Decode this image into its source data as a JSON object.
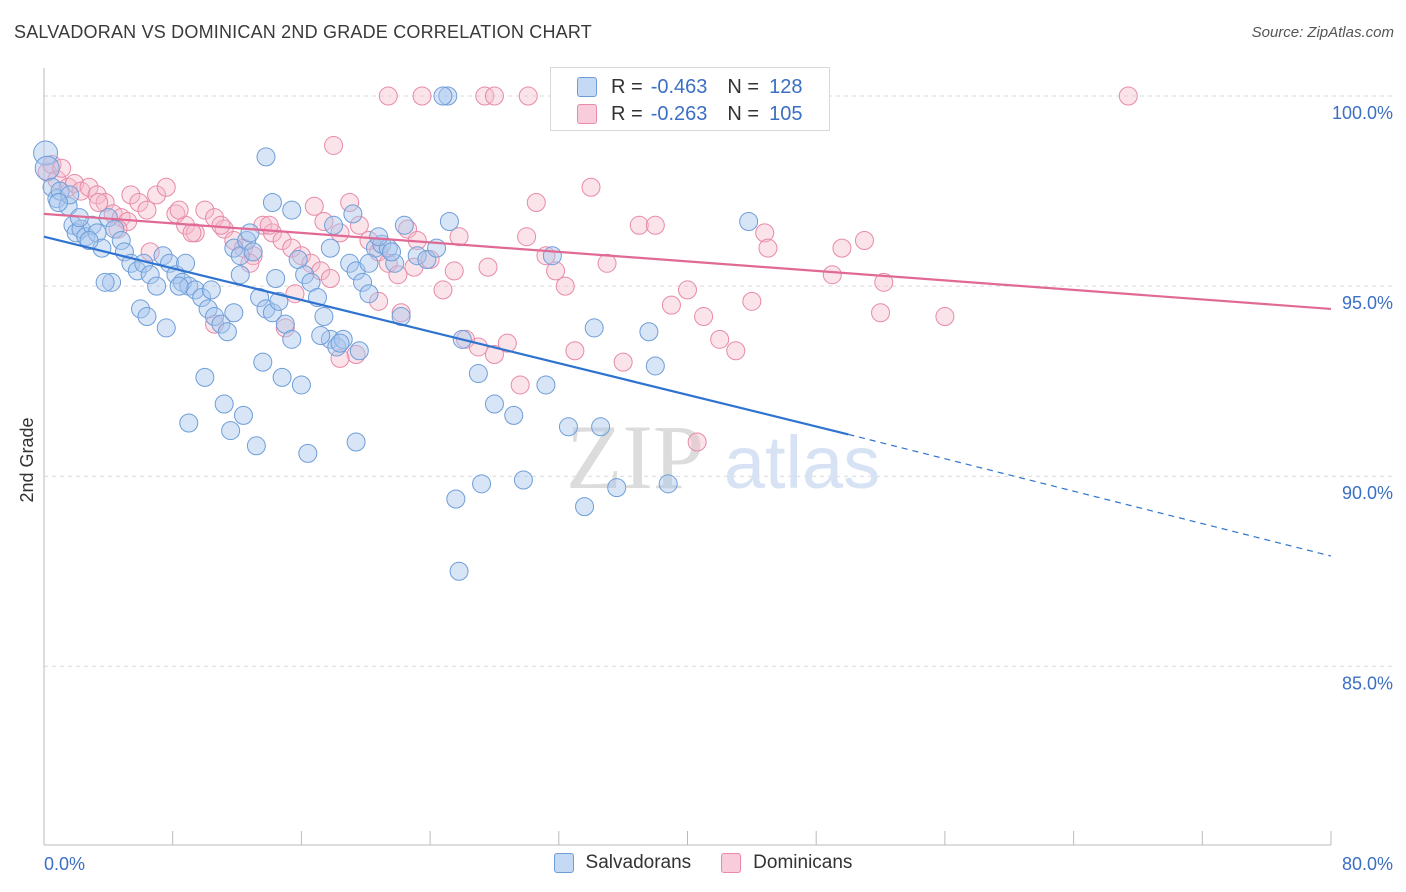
{
  "header": {
    "title": "SALVADORAN VS DOMINICAN 2ND GRADE CORRELATION CHART",
    "source_label": "Source:",
    "source_value": "ZipAtlas.com"
  },
  "legend": {
    "r_label": "R =",
    "n_label": "N =",
    "entries": [
      {
        "name": "Salvadorans",
        "r": "-0.463",
        "n": "128",
        "fill": "#a9c6ee",
        "stroke": "#6e9ed8"
      },
      {
        "name": "Dominicans",
        "r": "-0.263",
        "n": "105",
        "fill": "#f5b8cb",
        "stroke": "#e88aa8"
      }
    ]
  },
  "watermark": {
    "zip": "ZIP",
    "atlas": "atlas"
  },
  "colors": {
    "blue_line": "#2f73d0",
    "pink_line": "#e06a95",
    "tick_text": "#3b6fc4",
    "grid": "#d9d9d9"
  },
  "chart_data": {
    "type": "scatter",
    "title": "SALVADORAN VS DOMINICAN 2ND GRADE CORRELATION CHART",
    "xlabel": "",
    "ylabel": "2nd Grade",
    "xlim": [
      0,
      80
    ],
    "ylim": [
      80.3,
      101.0
    ],
    "x_tick_labels": [
      "0.0%",
      "80.0%"
    ],
    "y_ticks": [
      85,
      90,
      95,
      100
    ],
    "y_tick_labels": [
      "85.0%",
      "90.0%",
      "95.0%",
      "100.0%"
    ],
    "grid": true,
    "legend_position": "top-center",
    "series": [
      {
        "name": "Salvadorans",
        "color": "#6e9ed8",
        "trend": {
          "x0": 0,
          "y0": 96.3,
          "x1": 50,
          "y1": 91.1,
          "dashed_to_x": 80,
          "dashed_to_y": 87.9
        },
        "points": [
          [
            0.1,
            98.5
          ],
          [
            0.2,
            98.1
          ],
          [
            0.5,
            97.6
          ],
          [
            0.8,
            97.3
          ],
          [
            1.0,
            97.5
          ],
          [
            1.5,
            97.1
          ],
          [
            1.8,
            96.6
          ],
          [
            2.0,
            96.4
          ],
          [
            2.3,
            96.5
          ],
          [
            2.6,
            96.3
          ],
          [
            3.0,
            96.6
          ],
          [
            3.3,
            96.4
          ],
          [
            3.6,
            96.0
          ],
          [
            4.0,
            96.8
          ],
          [
            4.4,
            96.5
          ],
          [
            4.8,
            96.2
          ],
          [
            5.0,
            95.9
          ],
          [
            5.4,
            95.6
          ],
          [
            5.8,
            95.4
          ],
          [
            6.2,
            95.6
          ],
          [
            6.6,
            95.3
          ],
          [
            7.0,
            95.0
          ],
          [
            7.4,
            95.8
          ],
          [
            7.8,
            95.6
          ],
          [
            8.2,
            95.3
          ],
          [
            8.6,
            95.1
          ],
          [
            9.0,
            95.0
          ],
          [
            9.4,
            94.9
          ],
          [
            9.8,
            94.7
          ],
          [
            10.2,
            94.4
          ],
          [
            10.6,
            94.2
          ],
          [
            11.0,
            94.0
          ],
          [
            11.4,
            93.8
          ],
          [
            11.8,
            96.0
          ],
          [
            12.2,
            95.8
          ],
          [
            12.6,
            96.2
          ],
          [
            13.0,
            95.9
          ],
          [
            13.4,
            94.7
          ],
          [
            13.8,
            94.4
          ],
          [
            14.2,
            94.3
          ],
          [
            14.6,
            94.6
          ],
          [
            15.0,
            94.0
          ],
          [
            15.4,
            93.6
          ],
          [
            15.8,
            95.7
          ],
          [
            16.2,
            95.3
          ],
          [
            16.6,
            95.1
          ],
          [
            17.0,
            94.7
          ],
          [
            17.4,
            94.2
          ],
          [
            17.8,
            93.6
          ],
          [
            18.2,
            93.4
          ],
          [
            18.6,
            93.6
          ],
          [
            19.0,
            95.6
          ],
          [
            19.4,
            95.4
          ],
          [
            19.8,
            95.1
          ],
          [
            20.2,
            94.8
          ],
          [
            20.6,
            96.0
          ],
          [
            21.0,
            96.1
          ],
          [
            21.4,
            96.0
          ],
          [
            21.8,
            95.6
          ],
          [
            22.2,
            94.2
          ],
          [
            2.8,
            96.2
          ],
          [
            4.2,
            95.1
          ],
          [
            6.0,
            94.4
          ],
          [
            7.6,
            93.9
          ],
          [
            8.8,
            95.6
          ],
          [
            10.0,
            92.6
          ],
          [
            11.2,
            91.9
          ],
          [
            12.4,
            91.6
          ],
          [
            13.6,
            93.0
          ],
          [
            14.8,
            92.6
          ],
          [
            16.0,
            92.4
          ],
          [
            17.2,
            93.7
          ],
          [
            18.4,
            93.5
          ],
          [
            19.6,
            93.3
          ],
          [
            20.8,
            96.3
          ],
          [
            22.4,
            96.6
          ],
          [
            23.2,
            95.8
          ],
          [
            25.2,
            96.7
          ],
          [
            26.0,
            93.6
          ],
          [
            27.0,
            92.7
          ],
          [
            28.0,
            91.9
          ],
          [
            29.2,
            91.6
          ],
          [
            31.2,
            92.4
          ],
          [
            32.6,
            91.3
          ],
          [
            34.6,
            91.3
          ],
          [
            35.6,
            89.7
          ],
          [
            9.0,
            91.4
          ],
          [
            11.6,
            91.2
          ],
          [
            13.2,
            90.8
          ],
          [
            16.4,
            90.6
          ],
          [
            19.4,
            90.9
          ],
          [
            25.6,
            89.4
          ],
          [
            27.2,
            89.8
          ],
          [
            29.8,
            89.9
          ],
          [
            33.6,
            89.2
          ],
          [
            25.8,
            87.5
          ],
          [
            43.8,
            96.7
          ],
          [
            34.2,
            93.9
          ],
          [
            31.6,
            95.8
          ],
          [
            38.0,
            92.9
          ],
          [
            37.6,
            93.8
          ],
          [
            38.8,
            89.8
          ],
          [
            15.4,
            97.0
          ],
          [
            8.4,
            95.0
          ],
          [
            6.4,
            94.2
          ],
          [
            3.8,
            95.1
          ],
          [
            2.2,
            96.8
          ],
          [
            1.6,
            97.4
          ],
          [
            0.9,
            97.2
          ],
          [
            12.8,
            96.4
          ],
          [
            17.8,
            96.0
          ],
          [
            19.2,
            96.9
          ],
          [
            23.8,
            95.7
          ],
          [
            24.4,
            96.0
          ],
          [
            21.6,
            95.9
          ],
          [
            18.0,
            96.6
          ],
          [
            14.2,
            97.2
          ],
          [
            13.8,
            98.4
          ],
          [
            14.4,
            95.2
          ],
          [
            10.4,
            94.9
          ],
          [
            11.8,
            94.3
          ],
          [
            12.2,
            95.3
          ],
          [
            20.2,
            95.6
          ],
          [
            25.1,
            100.0
          ],
          [
            24.8,
            100.0
          ]
        ]
      },
      {
        "name": "Dominicans",
        "color": "#e88aa8",
        "trend": {
          "x0": 0,
          "y0": 96.9,
          "x1": 80,
          "y1": 94.4
        },
        "points": [
          [
            0.2,
            98.0
          ],
          [
            0.5,
            98.2
          ],
          [
            0.8,
            97.8
          ],
          [
            1.1,
            98.1
          ],
          [
            1.5,
            97.6
          ],
          [
            1.9,
            97.7
          ],
          [
            2.3,
            97.5
          ],
          [
            2.8,
            97.6
          ],
          [
            3.3,
            97.4
          ],
          [
            3.8,
            97.2
          ],
          [
            4.3,
            96.9
          ],
          [
            4.8,
            96.8
          ],
          [
            5.4,
            97.4
          ],
          [
            5.9,
            97.2
          ],
          [
            6.4,
            97.0
          ],
          [
            7.0,
            97.4
          ],
          [
            7.6,
            97.6
          ],
          [
            8.2,
            96.9
          ],
          [
            8.8,
            96.6
          ],
          [
            9.4,
            96.4
          ],
          [
            10.0,
            97.0
          ],
          [
            10.6,
            96.8
          ],
          [
            11.2,
            96.5
          ],
          [
            11.8,
            96.2
          ],
          [
            12.4,
            96.0
          ],
          [
            13.0,
            95.8
          ],
          [
            13.6,
            96.6
          ],
          [
            14.2,
            96.4
          ],
          [
            14.8,
            96.2
          ],
          [
            15.4,
            96.0
          ],
          [
            16.0,
            95.8
          ],
          [
            16.6,
            95.6
          ],
          [
            17.2,
            95.4
          ],
          [
            17.8,
            95.2
          ],
          [
            18.4,
            96.4
          ],
          [
            19.0,
            97.2
          ],
          [
            19.6,
            96.6
          ],
          [
            20.2,
            96.2
          ],
          [
            20.8,
            95.9
          ],
          [
            21.4,
            95.6
          ],
          [
            22.0,
            95.3
          ],
          [
            22.6,
            96.5
          ],
          [
            23.2,
            96.2
          ],
          [
            24.0,
            95.7
          ],
          [
            24.8,
            94.9
          ],
          [
            25.5,
            95.4
          ],
          [
            26.2,
            93.6
          ],
          [
            27.0,
            93.4
          ],
          [
            28.0,
            93.2
          ],
          [
            28.8,
            93.5
          ],
          [
            30.0,
            96.3
          ],
          [
            30.6,
            97.2
          ],
          [
            31.2,
            95.8
          ],
          [
            31.8,
            95.4
          ],
          [
            32.4,
            95.0
          ],
          [
            33.0,
            93.3
          ],
          [
            34.0,
            97.6
          ],
          [
            35.0,
            95.6
          ],
          [
            36.0,
            93.0
          ],
          [
            37.0,
            96.6
          ],
          [
            38.0,
            96.6
          ],
          [
            39.0,
            94.5
          ],
          [
            40.0,
            94.9
          ],
          [
            41.0,
            94.2
          ],
          [
            42.0,
            93.6
          ],
          [
            43.0,
            93.3
          ],
          [
            44.0,
            94.6
          ],
          [
            44.8,
            96.4
          ],
          [
            45.0,
            96.0
          ],
          [
            49.0,
            95.3
          ],
          [
            49.6,
            96.0
          ],
          [
            51.0,
            96.2
          ],
          [
            52.2,
            95.1
          ],
          [
            52.0,
            94.3
          ],
          [
            56.0,
            94.2
          ],
          [
            18.0,
            98.7
          ],
          [
            21.4,
            100.0
          ],
          [
            23.5,
            100.0
          ],
          [
            27.4,
            100.0
          ],
          [
            28.0,
            100.0
          ],
          [
            30.1,
            100.0
          ],
          [
            33.1,
            100.0
          ],
          [
            67.4,
            100.0
          ],
          [
            40.6,
            90.9
          ],
          [
            10.6,
            94.0
          ],
          [
            15.6,
            94.8
          ],
          [
            12.8,
            95.6
          ],
          [
            14.0,
            96.6
          ],
          [
            9.2,
            96.4
          ],
          [
            11.0,
            96.6
          ],
          [
            16.8,
            97.1
          ],
          [
            17.4,
            96.7
          ],
          [
            19.4,
            93.2
          ],
          [
            18.4,
            93.1
          ],
          [
            15.0,
            93.9
          ],
          [
            20.8,
            94.6
          ],
          [
            22.2,
            94.3
          ],
          [
            23.0,
            95.5
          ],
          [
            27.6,
            95.5
          ],
          [
            25.8,
            96.3
          ],
          [
            29.6,
            92.4
          ],
          [
            8.4,
            97.0
          ],
          [
            6.6,
            95.9
          ],
          [
            5.2,
            96.7
          ],
          [
            4.6,
            96.5
          ],
          [
            3.4,
            97.2
          ]
        ]
      }
    ]
  }
}
